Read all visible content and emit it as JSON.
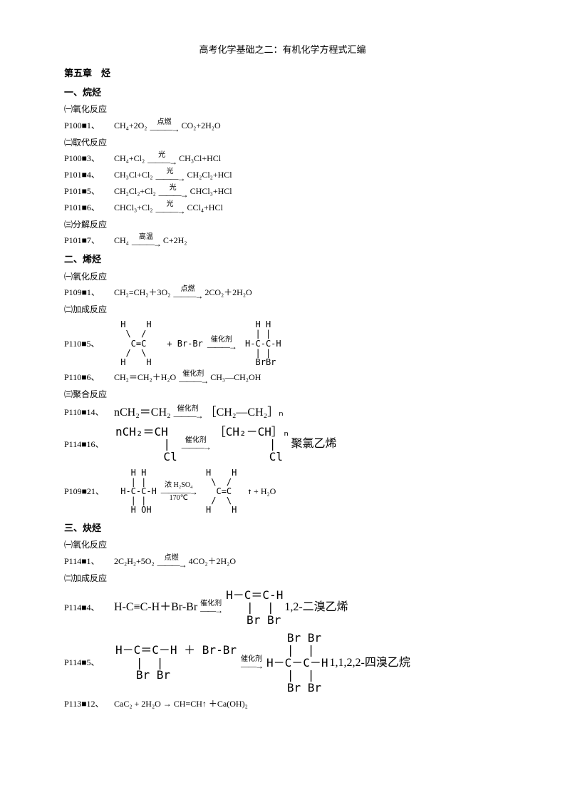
{
  "title": "高考化学基础之二：有机化学方程式汇编",
  "chapter": "第五章　烃",
  "s1": {
    "heading": "一、烷烃",
    "r1": {
      "sub": "㈠氧化反应",
      "ref": "P100■1、",
      "lhs": "CH₄+2O₂",
      "cond": "点燃",
      "rhs": "CO₂+2H₂O"
    },
    "r2": {
      "sub": "㈡取代反应",
      "a": {
        "ref": "P100■3、",
        "lhs": "CH₄+Cl₂",
        "cond": "光",
        "rhs": "CH₃Cl+HCl"
      },
      "b": {
        "ref": "P101■4、",
        "lhs": "CH₃Cl+Cl₂",
        "cond": "光",
        "rhs": "CH₂Cl₂+HCl"
      },
      "c": {
        "ref": "P101■5、",
        "lhs": "CH₂Cl₂+Cl₂",
        "cond": "光",
        "rhs": "CHCl₃+HCl"
      },
      "d": {
        "ref": "P101■6、",
        "lhs": "CHCl₃+Cl₂",
        "cond": "光",
        "rhs": "CCl₄+HCl"
      }
    },
    "r3": {
      "sub": "㈢分解反应",
      "ref": "P101■7、",
      "lhs": "CH₄",
      "cond": "高温",
      "rhs": "C+2H₂"
    }
  },
  "s2": {
    "heading": "二、烯烃",
    "r1": {
      "sub": "㈠氧化反应",
      "ref": "P109■1、",
      "lhs": "CH₂=CH₂＋3O₂",
      "cond": "点燃",
      "rhs": "2CO₂＋2H₂O"
    },
    "r2": {
      "sub": "㈡加成反应",
      "a": {
        "ref": "P110■5、",
        "cond": "催化剂"
      },
      "b": {
        "ref": "P110■6、",
        "lhs": "CH₂＝CH₂＋H₂O",
        "cond": "催化剂",
        "rhs": "CH₃—CH₂OH"
      }
    },
    "r3": {
      "sub": "㈢聚合反应",
      "a": {
        "ref": "P110■14、",
        "lhs": "nCH₂＝CH₂",
        "cond": "催化剂",
        "rhs": "［CH₂—CH₂］ₙ"
      },
      "b": {
        "ref": "P114■16、",
        "cond": "催化剂",
        "note": "聚氯乙烯"
      },
      "c": {
        "ref": "P109■21、",
        "cond_top": "浓 H₂SO₄",
        "cond_bot": "170℃",
        "tail": "+ H₂O"
      }
    }
  },
  "s3": {
    "heading": "三、炔烃",
    "r1": {
      "sub": "㈠氧化反应",
      "ref": "P114■1、",
      "lhs": "2C₂H₂+5O₂",
      "cond": "点燃",
      "rhs": "4CO₂＋2H₂O"
    },
    "r2": {
      "sub": "㈡加成反应",
      "a": {
        "ref": "P114■4、",
        "lhs": "H-C≡C-H＋Br-Br",
        "cond": "催化剂",
        "note": "1,2-二溴乙烯"
      },
      "b": {
        "ref": "P114■5、",
        "cond": "催化剂",
        "note": "1,1,2,2-四溴乙烷"
      },
      "c": {
        "ref": "P113■12、",
        "text": "CaC₂ +  2H₂O → CH≡CH↑ ＋Ca(OH)₂"
      }
    }
  }
}
